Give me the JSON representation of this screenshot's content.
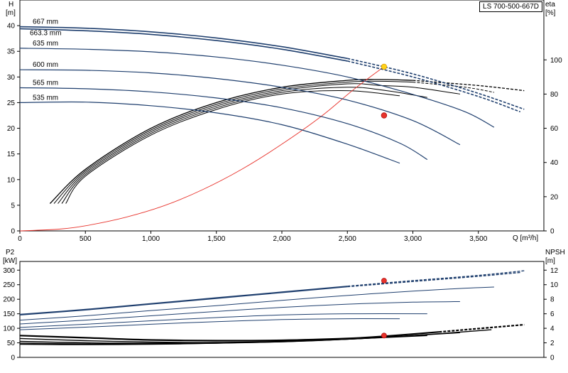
{
  "model": "LS 700-500-667D",
  "colors": {
    "curve": "#1f3f6e",
    "black": "#000000",
    "system": "#e8332c",
    "duty_point": "#e8332c",
    "selected_point": "#ffd21a"
  },
  "chart_data": [
    {
      "type": "line",
      "title": "",
      "xlabel": "Q [m³/h]",
      "x_ticks": [
        "0",
        "500",
        "1,000",
        "1,500",
        "2,000",
        "2,500",
        "3,000",
        "3,500"
      ],
      "xlim": [
        0,
        4000
      ],
      "ylabel_left_line1": "H",
      "ylabel_left_line2": "[m]",
      "ylim_left": [
        0,
        45
      ],
      "y_ticks_left": [
        "0",
        "5",
        "10",
        "15",
        "20",
        "25",
        "30",
        "35",
        "40"
      ],
      "ylabel_right_line1": "eta",
      "ylabel_right_line2": "[%]",
      "ylim_right": [
        0,
        135
      ],
      "y_ticks_right": [
        "0",
        "20",
        "40",
        "60",
        "80",
        "100"
      ],
      "grid": false,
      "head_curves": [
        {
          "name": "667 mm",
          "x": [
            0,
            500,
            1000,
            1500,
            2000,
            2500,
            3000,
            3500,
            3850
          ],
          "y": [
            39.8,
            39.5,
            38.8,
            37.6,
            35.9,
            33.6,
            30.6,
            26.8,
            23.7
          ]
        },
        {
          "name": "663.3 mm",
          "x": [
            0,
            500,
            1000,
            1500,
            2000,
            2500,
            3000,
            3500,
            3820
          ],
          "y": [
            39.4,
            39.0,
            38.3,
            37.1,
            35.4,
            33.1,
            30.0,
            26.2,
            23.2
          ]
        },
        {
          "name": "635 mm",
          "x": [
            0,
            500,
            1000,
            1500,
            2000,
            2500,
            3000,
            3400,
            3620
          ],
          "y": [
            35.6,
            35.4,
            34.9,
            33.9,
            32.3,
            30.0,
            26.6,
            23.2,
            20.2
          ]
        },
        {
          "name": "600 mm",
          "x": [
            0,
            500,
            1000,
            1500,
            2000,
            2500,
            3000,
            3360
          ],
          "y": [
            31.4,
            31.3,
            30.8,
            29.7,
            28.0,
            25.5,
            21.5,
            16.8
          ]
        },
        {
          "name": "565 mm",
          "x": [
            0,
            500,
            1000,
            1500,
            2000,
            2500,
            2900,
            3110
          ],
          "y": [
            27.9,
            27.7,
            27.1,
            25.9,
            24.0,
            20.9,
            17.1,
            13.9
          ]
        },
        {
          "name": "535 mm",
          "x": [
            0,
            500,
            1000,
            1500,
            2000,
            2500,
            2900
          ],
          "y": [
            25.0,
            25.1,
            24.4,
            23.0,
            20.7,
            16.9,
            13.2
          ]
        }
      ],
      "efficiency_curves": [
        {
          "x": [
            230,
            500,
            1000,
            1500,
            2000,
            2500,
            2750,
            3000,
            3500,
            3850
          ],
          "y": [
            16,
            36,
            60,
            75,
            84,
            88,
            88.5,
            88,
            85,
            82
          ]
        },
        {
          "x": [
            260,
            500,
            1000,
            1500,
            2000,
            2500,
            2750,
            3000,
            3400,
            3620
          ],
          "y": [
            16,
            35,
            59,
            74,
            83,
            87,
            87.5,
            87,
            84,
            81
          ]
        },
        {
          "x": [
            290,
            500,
            1000,
            1500,
            2000,
            2500,
            2750,
            3000,
            3360
          ],
          "y": [
            16,
            34,
            58,
            73,
            82,
            86,
            85,
            84,
            80
          ]
        },
        {
          "x": [
            320,
            500,
            1000,
            1500,
            2000,
            2500,
            2800,
            3110
          ],
          "y": [
            16,
            33,
            57,
            72,
            81,
            84,
            82,
            78
          ]
        },
        {
          "x": [
            350,
            500,
            1000,
            1500,
            2000,
            2500,
            2900
          ],
          "y": [
            16,
            32,
            56,
            71,
            80,
            82,
            79
          ]
        }
      ],
      "system_curve": {
        "x": [
          0,
          300,
          500,
          800,
          1100,
          1400,
          1700,
          2000,
          2300,
          2550,
          2780
        ],
        "y": [
          0,
          0.35,
          1.0,
          2.6,
          4.9,
          8.1,
          12.1,
          16.9,
          22.3,
          27.6,
          32.0
        ]
      },
      "duty_points": [
        {
          "name": "operating point",
          "x": 2780,
          "y": 32.0,
          "color": "yellow"
        },
        {
          "name": "efficiency point",
          "x": 2780,
          "y": 22.5,
          "color": "red"
        }
      ]
    },
    {
      "type": "line",
      "title": "",
      "xlim": [
        0,
        4000
      ],
      "ylabel_left_line1": "P2",
      "ylabel_left_line2": "[kW]",
      "ylim_left": [
        0,
        330
      ],
      "y_ticks_left": [
        "0",
        "50",
        "100",
        "150",
        "200",
        "250",
        "300"
      ],
      "ylabel_right_line1": "NPSH",
      "ylabel_right_line2": "[m]",
      "ylim_right": [
        0,
        13.2
      ],
      "y_ticks_right": [
        "0",
        "2",
        "4",
        "6",
        "8",
        "10",
        "12"
      ],
      "grid": false,
      "power_curves": [
        {
          "x": [
            0,
            500,
            1000,
            1500,
            2000,
            2500,
            3000,
            3500,
            3850
          ],
          "y": [
            148,
            165,
            185,
            205,
            225,
            245,
            264,
            282,
            298
          ]
        },
        {
          "x": [
            0,
            500,
            1000,
            1500,
            2000,
            2500,
            3000,
            3500,
            3820
          ],
          "y": [
            146,
            163,
            183,
            203,
            223,
            243,
            261,
            279,
            292
          ]
        },
        {
          "x": [
            0,
            500,
            1000,
            1500,
            2000,
            2500,
            3000,
            3400,
            3620
          ],
          "y": [
            128,
            143,
            161,
            178,
            196,
            213,
            228,
            238,
            242
          ]
        },
        {
          "x": [
            0,
            500,
            1000,
            1500,
            2000,
            2500,
            3000,
            3360
          ],
          "y": [
            115,
            128,
            143,
            158,
            172,
            183,
            190,
            192
          ]
        },
        {
          "x": [
            0,
            500,
            1000,
            1500,
            2000,
            2500,
            3110
          ],
          "y": [
            103,
            114,
            126,
            137,
            146,
            150,
            150
          ]
        },
        {
          "x": [
            0,
            500,
            1000,
            1500,
            2000,
            2500,
            2900
          ],
          "y": [
            95,
            104,
            114,
            123,
            130,
            133,
            133
          ]
        }
      ],
      "npsh_curves": [
        {
          "x": [
            0,
            500,
            1000,
            1500,
            2000,
            2500,
            2780,
            3200,
            3850
          ],
          "y": [
            3.0,
            2.7,
            2.4,
            2.3,
            2.35,
            2.6,
            2.9,
            3.5,
            4.5
          ]
        },
        {
          "x": [
            0,
            500,
            1000,
            1500,
            2000,
            2500,
            3000,
            3600
          ],
          "y": [
            2.6,
            2.3,
            2.1,
            2.05,
            2.2,
            2.5,
            3.0,
            3.8
          ]
        },
        {
          "x": [
            0,
            500,
            1000,
            1500,
            2000,
            2500,
            3000,
            3360
          ],
          "y": [
            2.2,
            2.0,
            1.95,
            2.0,
            2.15,
            2.5,
            3.0,
            3.4
          ]
        },
        {
          "x": [
            0,
            500,
            1000,
            1500,
            2000,
            2500,
            3110
          ],
          "y": [
            1.95,
            1.85,
            1.85,
            1.95,
            2.15,
            2.5,
            3.0
          ]
        },
        {
          "x": [
            0,
            500,
            1000,
            1500,
            2000,
            2500,
            2900
          ],
          "y": [
            1.8,
            1.75,
            1.8,
            1.95,
            2.2,
            2.55,
            2.9
          ]
        }
      ],
      "duty_points": [
        {
          "name": "power point",
          "x": 2780,
          "y": 264,
          "color": "red"
        },
        {
          "name": "npsh point",
          "x": 2780,
          "y": 75,
          "color": "red"
        }
      ]
    }
  ]
}
